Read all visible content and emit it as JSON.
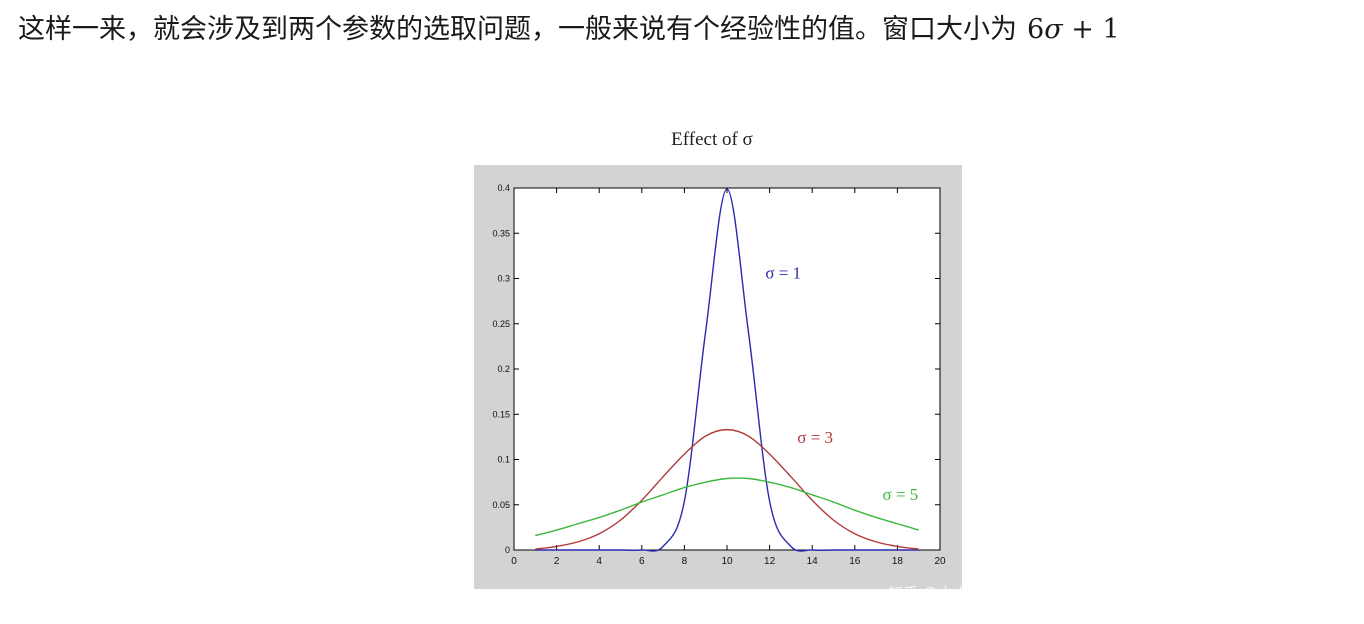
{
  "paragraph": {
    "text": "这样一来，就会涉及到两个参数的选取问题，一般来说有个经验性的值。窗口大小为",
    "formula": {
      "coefficient": "6",
      "variable": "σ",
      "operator": "+",
      "constant": "1"
    }
  },
  "figure": {
    "watermark": "知乎 @小小",
    "colors": {
      "panel": "#d3d3d3",
      "plot_background": "#ffffff",
      "sigma1": "#2a2ab0",
      "sigma3": "#b03a3a",
      "sigma5": "#3cb83c"
    }
  },
  "chart_data": {
    "type": "line",
    "title": "Effect of σ",
    "xlabel": "",
    "ylabel": "",
    "xlim": [
      0,
      20
    ],
    "ylim": [
      0,
      0.4
    ],
    "x_ticks": [
      "0",
      "2",
      "4",
      "6",
      "8",
      "10",
      "12",
      "14",
      "16",
      "18",
      "20"
    ],
    "y_ticks": [
      "0",
      "0.05",
      "0.1",
      "0.15",
      "0.2",
      "0.25",
      "0.3",
      "0.35",
      "0.4"
    ],
    "grid": false,
    "x": [
      1,
      2,
      3,
      4,
      5,
      6,
      7,
      8,
      9,
      10,
      11,
      12,
      13,
      14,
      15,
      16,
      17,
      18,
      19
    ],
    "series": [
      {
        "name": "σ = 1",
        "color": "#2a2ab0",
        "values": [
          0,
          0,
          0,
          0,
          0,
          0,
          0.004,
          0.054,
          0.242,
          0.399,
          0.242,
          0.054,
          0.004,
          0,
          0,
          0,
          0,
          0,
          0
        ]
      },
      {
        "name": "σ = 3",
        "color": "#b03a3a",
        "values": [
          0.001,
          0.004,
          0.009,
          0.018,
          0.033,
          0.055,
          0.081,
          0.106,
          0.126,
          0.133,
          0.126,
          0.106,
          0.081,
          0.055,
          0.033,
          0.018,
          0.009,
          0.004,
          0.001
        ]
      },
      {
        "name": "σ = 5",
        "color": "#3cb83c",
        "values": [
          0.016,
          0.022,
          0.029,
          0.036,
          0.044,
          0.053,
          0.061,
          0.069,
          0.075,
          0.079,
          0.079,
          0.075,
          0.069,
          0.061,
          0.053,
          0.044,
          0.036,
          0.029,
          0.022
        ]
      }
    ],
    "annotations": [
      {
        "text": "σ = 1",
        "series": 0,
        "at_x": 11.8,
        "at_y": 0.3
      },
      {
        "text": "σ = 3",
        "series": 1,
        "at_x": 13.3,
        "at_y": 0.118
      },
      {
        "text": "σ = 5",
        "series": 2,
        "at_x": 17.3,
        "at_y": 0.055
      }
    ]
  }
}
